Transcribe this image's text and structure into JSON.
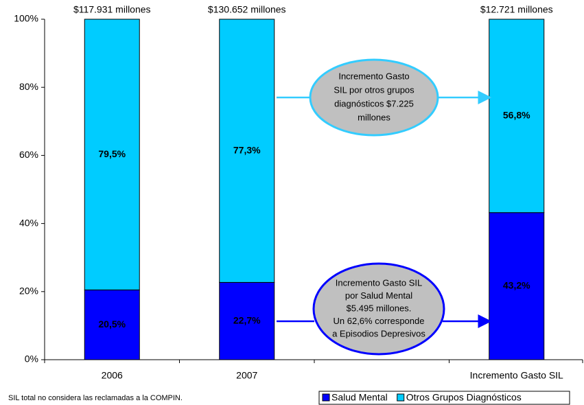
{
  "chart_data": {
    "type": "stacked_bar_100",
    "categories": [
      "2006",
      "2007",
      null,
      "Incremento Gasto SIL"
    ],
    "bar_top_labels": [
      "$117.931 millones",
      "$130.652 millones",
      null,
      "$12.721 millones"
    ],
    "series": [
      {
        "name": "Salud Mental",
        "color": "#0000ff",
        "label_color": "#ffffff",
        "values": [
          20.5,
          22.7,
          null,
          43.2
        ],
        "value_labels": [
          "20,5%",
          "22,7%",
          null,
          "43,2%"
        ]
      },
      {
        "name": "Otros Grupos Diagnósticos",
        "color": "#00ccff",
        "label_color": "#000000",
        "values": [
          79.5,
          77.3,
          null,
          56.8
        ],
        "value_labels": [
          "79,5%",
          "77,3%",
          null,
          "56,8%"
        ]
      }
    ],
    "ylim": [
      0,
      100
    ],
    "yticks": [
      {
        "value": 0,
        "label": "0%"
      },
      {
        "value": 20,
        "label": "20%"
      },
      {
        "value": 40,
        "label": "40%"
      },
      {
        "value": 60,
        "label": "60%"
      },
      {
        "value": 80,
        "label": "80%"
      },
      {
        "value": 100,
        "label": "100%"
      }
    ],
    "annotations": [
      {
        "lines": [
          "Incremento Gasto",
          "SIL por otros grupos",
          "diagnósticos $7.225",
          "millones"
        ]
      },
      {
        "lines": [
          "Incremento Gasto SIL",
          "por Salud Mental",
          "$5.495 millones.",
          "Un 62,6% corresponde",
          "a Episodios Depresivos"
        ]
      }
    ],
    "footnote": "SIL total no considera las reclamadas a la COMPIN.",
    "legend": "bottom-right"
  }
}
